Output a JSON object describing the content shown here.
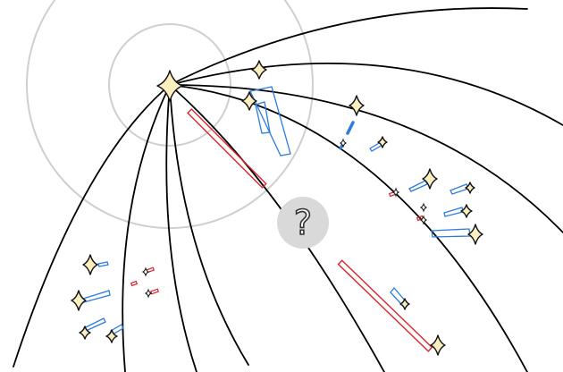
{
  "scene": {
    "background": "#ffffff",
    "help_glyph": "?",
    "colors": {
      "trajectory": "#000000",
      "ring": "#cfcfcf",
      "sparkle_fill": "#fbefc0",
      "blue_marks": "#2b7be0",
      "red_marks": "#d8262e",
      "help_button": "#d9d9d9"
    },
    "icons": [
      "origin-sparkle-icon",
      "sparkle-icon",
      "question-mark-icon"
    ]
  }
}
